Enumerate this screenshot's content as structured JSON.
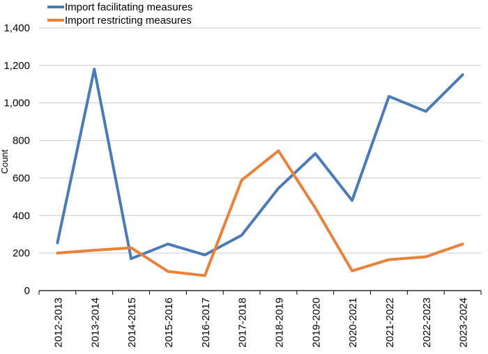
{
  "chart_data": {
    "type": "line",
    "title": "",
    "xlabel": "",
    "ylabel": "Count",
    "ylim": [
      0,
      1400
    ],
    "yticks": [
      0,
      200,
      400,
      600,
      800,
      1000,
      1200,
      1400
    ],
    "ytick_labels": [
      "0",
      "200",
      "400",
      "600",
      "800",
      "1,000",
      "1,200",
      "1,400"
    ],
    "grid": "horizontal",
    "legend_position": "top-left",
    "categories": [
      "2012-2013",
      "2013-2014",
      "2014-2015",
      "2015-2016",
      "2016-2017",
      "2017-2018",
      "2018-2019",
      "2019-2020",
      "2020-2021",
      "2021-2022",
      "2022-2023",
      "2023-2024"
    ],
    "series": [
      {
        "name": "Import facilitating measures",
        "color": "#4a7bb7",
        "values": [
          255,
          1180,
          170,
          248,
          190,
          295,
          545,
          730,
          480,
          1035,
          955,
          1150
        ]
      },
      {
        "name": "Import restricting measures",
        "color": "#e8813a",
        "values": [
          200,
          215,
          228,
          102,
          80,
          588,
          745,
          440,
          105,
          165,
          180,
          248
        ]
      }
    ]
  }
}
